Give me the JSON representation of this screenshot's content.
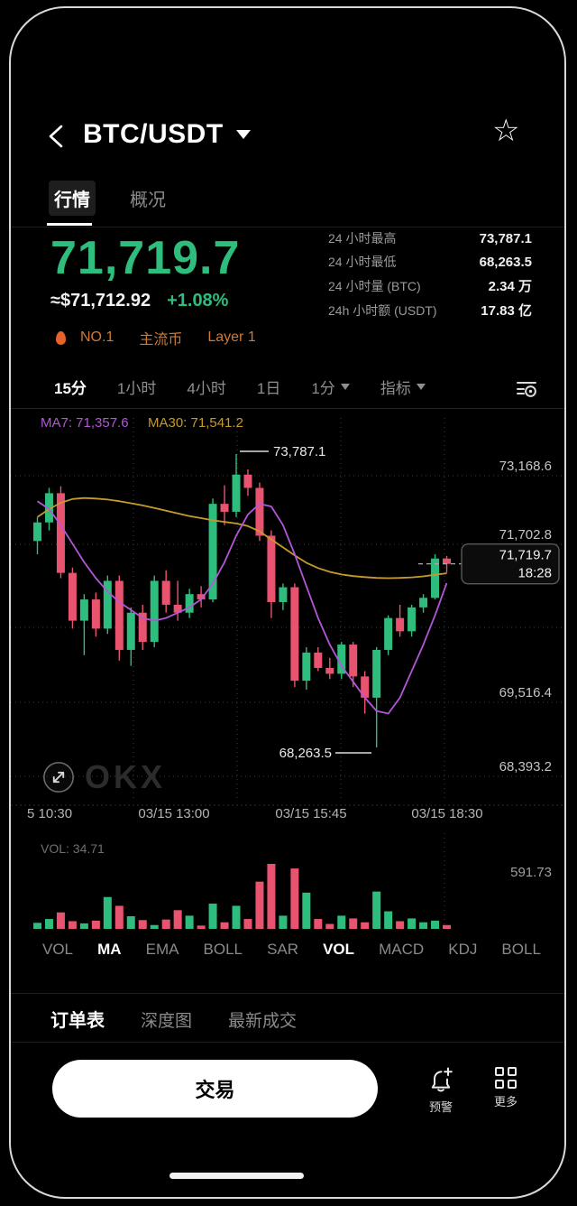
{
  "header": {
    "title": "BTC/USDT",
    "star_icon": "☆"
  },
  "icons": {
    "back": "chevron-left",
    "pair_dropdown": "caret-down",
    "favorite": "star-outline",
    "flame": "css-teardrop-orange",
    "chart_settings": "lines-with-dial",
    "expand": "circle-diagonal-arrows",
    "alert": "bell-plus",
    "more": "grid-2x2"
  },
  "top_tabs": [
    {
      "label": "行情",
      "active": true
    },
    {
      "label": "概况",
      "active": false
    }
  ],
  "price": {
    "last": "71,719.7",
    "fiat": "≈$71,712.92",
    "change": "+1.08%"
  },
  "badges": [
    {
      "icon": "flame-icon",
      "label": "NO.1"
    },
    {
      "label": "主流币"
    },
    {
      "label": "Layer 1"
    }
  ],
  "stats": [
    {
      "label": "24 小时最高",
      "value": "73,787.1"
    },
    {
      "label": "24 小时最低",
      "value": "68,263.5"
    },
    {
      "label": "24 小时量 (BTC)",
      "value": "2.34 万"
    },
    {
      "label": "24h 小时额 (USDT)",
      "value": "17.83 亿"
    }
  ],
  "timeframes": [
    {
      "label": "15分",
      "active": true
    },
    {
      "label": "1小时",
      "active": false
    },
    {
      "label": "4小时",
      "active": false
    },
    {
      "label": "1日",
      "active": false
    },
    {
      "label": "1分",
      "active": false,
      "caret": true
    },
    {
      "label": "指标",
      "active": false,
      "caret": true
    }
  ],
  "chart_data": {
    "type": "candlestick",
    "title": "BTC/USDT 15分 K线",
    "ma_labels": [
      {
        "text": "MA7: 71,357.6",
        "color": "#b357d8"
      },
      {
        "text": "MA30: 71,541.2",
        "color": "#c79a2d"
      }
    ],
    "up_color": "#2ebd7c",
    "down_color": "#e8546f",
    "y_axis_labels": [
      "73,168.6",
      "71,702.8",
      "69,516.4",
      "68,393.2"
    ],
    "x_axis_labels": [
      "5 10:30",
      "03/15 13:00",
      "03/15 15:45",
      "03/15 18:30"
    ],
    "high_annotation": "73,787.1",
    "low_annotation": "68,263.5",
    "last_price_tag": {
      "price": "71,719.7",
      "time": "18:28"
    },
    "high": 73787.1,
    "low": 68263.5,
    "candles": [
      [
        72150,
        72600,
        71900,
        72500
      ],
      [
        72500,
        73150,
        72350,
        73050
      ],
      [
        73050,
        73180,
        71450,
        71550
      ],
      [
        71550,
        71650,
        70500,
        70650
      ],
      [
        70650,
        71150,
        70000,
        71050
      ],
      [
        71050,
        71180,
        70350,
        70500
      ],
      [
        70500,
        71500,
        70400,
        71400
      ],
      [
        71400,
        71500,
        69900,
        70100
      ],
      [
        70100,
        70900,
        69800,
        70800
      ],
      [
        70800,
        70950,
        70100,
        70250
      ],
      [
        70250,
        71500,
        70150,
        71400
      ],
      [
        71400,
        71600,
        70800,
        70950
      ],
      [
        70950,
        71400,
        70650,
        70800
      ],
      [
        70800,
        71250,
        70700,
        71150
      ],
      [
        71150,
        71300,
        70900,
        71050
      ],
      [
        71050,
        72950,
        71000,
        72850
      ],
      [
        72850,
        73200,
        72450,
        72700
      ],
      [
        72700,
        73787.1,
        72600,
        73400
      ],
      [
        73400,
        73500,
        73000,
        73150
      ],
      [
        73150,
        73250,
        72150,
        72250
      ],
      [
        72250,
        72350,
        70700,
        71000
      ],
      [
        71000,
        71350,
        70850,
        71280
      ],
      [
        71280,
        71350,
        69400,
        69520
      ],
      [
        69520,
        70150,
        69350,
        70050
      ],
      [
        70050,
        70150,
        69700,
        69760
      ],
      [
        69760,
        69950,
        69550,
        69650
      ],
      [
        69650,
        70250,
        69550,
        70200
      ],
      [
        70200,
        70250,
        69400,
        69600
      ],
      [
        69600,
        69700,
        68900,
        69200
      ],
      [
        69200,
        70150,
        68263.5,
        70100
      ],
      [
        70100,
        70750,
        70000,
        70700
      ],
      [
        70700,
        70950,
        70350,
        70450
      ],
      [
        70450,
        70950,
        70350,
        70900
      ],
      [
        70900,
        71150,
        70800,
        71080
      ],
      [
        71080,
        71900,
        71050,
        71820
      ],
      [
        71820,
        71870,
        71550,
        71719.7
      ]
    ],
    "ma7_series": [
      72900,
      72750,
      72450,
      72100,
      71750,
      71450,
      71200,
      71000,
      70850,
      70700,
      70650,
      70700,
      70800,
      70900,
      71050,
      71350,
      71750,
      72250,
      72650,
      72850,
      72800,
      72450,
      71900,
      71300,
      70700,
      70200,
      69800,
      69500,
      69200,
      68950,
      68900,
      69200,
      69700,
      70200,
      70750,
      71357.6
    ],
    "ma30_series": [
      72600,
      72750,
      72870,
      72940,
      72960,
      72950,
      72930,
      72900,
      72860,
      72820,
      72770,
      72720,
      72670,
      72620,
      72580,
      72540,
      72510,
      72480,
      72430,
      72330,
      72180,
      72030,
      71880,
      71740,
      71640,
      71570,
      71520,
      71490,
      71470,
      71455,
      71450,
      71455,
      71465,
      71485,
      71515,
      71541.2
    ],
    "volume": {
      "label": "VOL: 34.71",
      "scale_max_label": "591.73",
      "scale_max": 591.73,
      "values": [
        55,
        90,
        150,
        70,
        50,
        75,
        290,
        210,
        115,
        80,
        35,
        85,
        170,
        120,
        30,
        230,
        60,
        210,
        90,
        430,
        591.73,
        120,
        550,
        330,
        90,
        45,
        120,
        95,
        60,
        340,
        160,
        70,
        95,
        60,
        75,
        34.71
      ]
    }
  },
  "watermark": {
    "logo_text": "OKX"
  },
  "indicator_tabs": [
    {
      "label": "VOL",
      "active": false
    },
    {
      "label": "MA",
      "active": true
    },
    {
      "label": "EMA",
      "active": false
    },
    {
      "label": "BOLL",
      "active": false
    },
    {
      "label": "SAR",
      "active": false
    },
    {
      "label": "VOL",
      "active": true
    },
    {
      "label": "MACD",
      "active": false
    },
    {
      "label": "KDJ",
      "active": false
    },
    {
      "label": "BOLL",
      "active": false
    }
  ],
  "bottom_tabs": [
    {
      "label": "订单表",
      "active": true
    },
    {
      "label": "深度图",
      "active": false
    },
    {
      "label": "最新成交",
      "active": false
    }
  ],
  "actions": {
    "trade_button": "交易",
    "alert_label": "预警",
    "more_label": "更多"
  }
}
